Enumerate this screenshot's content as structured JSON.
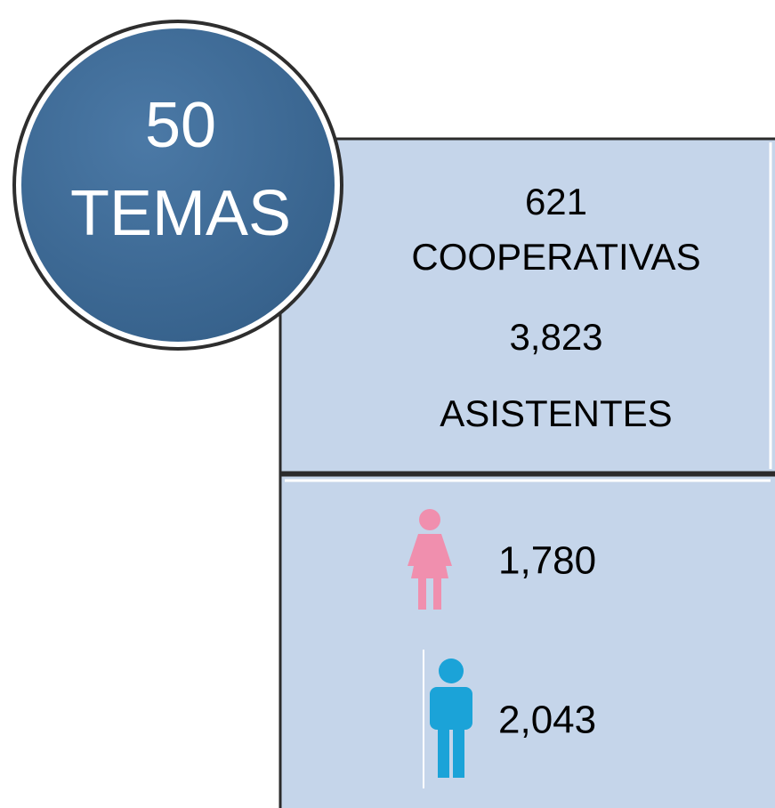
{
  "circle": {
    "number": "50",
    "label": "TEMAS"
  },
  "summary": {
    "cooperatives_count": "621",
    "cooperatives_label": "COOPERATIVAS",
    "attendees_count": "3,823",
    "attendees_label": "ASISTENTES"
  },
  "gender": {
    "women": "1,780",
    "men": "2,043"
  }
}
